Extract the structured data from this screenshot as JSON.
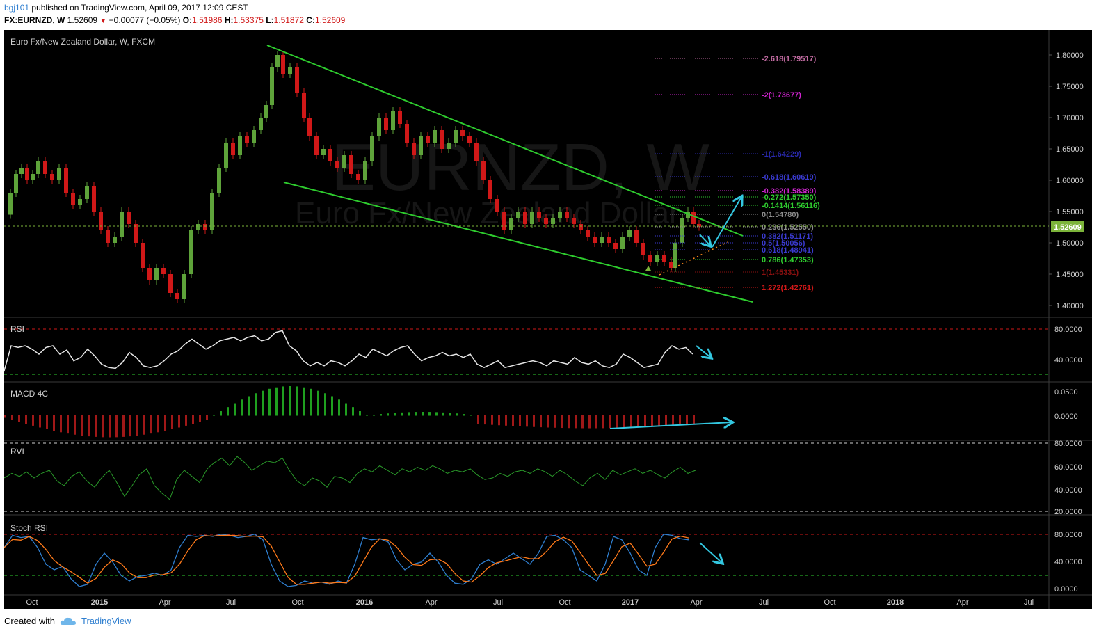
{
  "header": {
    "user": "bgj101",
    "published": "published on TradingView.com, April 09, 2017 12:09 CEST",
    "symbol": "FX:EURNZD, W",
    "price": "1.52609",
    "change": "−0.00077 (−0.05%)",
    "o_label": "O:",
    "o": "1.51986",
    "h_label": "H:",
    "h": "1.53375",
    "l_label": "L:",
    "l": "1.51872",
    "c_label": "C:",
    "c": "1.52609"
  },
  "chart": {
    "title": "Euro Fx/New Zealand Dollar, W, FXCM",
    "watermark_big": "EURNZD, W",
    "watermark_small": "Euro Fx/New Zealand Dollar",
    "last_price": "1.52609",
    "colors": {
      "up": "#5ea33a",
      "down": "#d01818",
      "trend": "#2ecc2e",
      "arrow": "#33c7e0",
      "lastline": "#7cb43a"
    },
    "price_ticks": [
      "1.80000",
      "1.75000",
      "1.70000",
      "1.65000",
      "1.60000",
      "1.55000",
      "1.50000",
      "1.45000",
      "1.40000"
    ],
    "fib_levels": [
      {
        "label": "-2.618(1.79517)",
        "color": "#c06aa0"
      },
      {
        "label": "-2(1.73677)",
        "color": "#d024d0"
      },
      {
        "label": "-1(1.64229)",
        "color": "#2a2ab0"
      },
      {
        "label": "-0.618(1.60619)",
        "color": "#3a3ad0"
      },
      {
        "label": "-0.382(1.58389)",
        "color": "#d024d0"
      },
      {
        "label": "-0.272(1.57350)",
        "color": "#2ecc2e"
      },
      {
        "label": "-0.1414(1.56116)",
        "color": "#2ecc2e"
      },
      {
        "label": "0(1.54780)",
        "color": "#8c8c8c"
      },
      {
        "label": "0.236(1.52550)",
        "color": "#8c8c8c"
      },
      {
        "label": "0.382(1.51171)",
        "color": "#3a3ad0"
      },
      {
        "label": "0.5(1.50056)",
        "color": "#3a3ad0"
      },
      {
        "label": "0.618(1.48941)",
        "color": "#3a3ad0"
      },
      {
        "label": "0.786(1.47353)",
        "color": "#2ecc2e"
      },
      {
        "label": "1(1.45331)",
        "color": "#8a1010"
      },
      {
        "label": "1.272(1.42761)",
        "color": "#d01818"
      }
    ],
    "time_labels": [
      "Oct",
      "2015",
      "Apr",
      "Jul",
      "Oct",
      "2016",
      "Apr",
      "Jul",
      "Oct",
      "2017",
      "Apr",
      "Jul",
      "Oct",
      "2018",
      "Apr",
      "Jul"
    ],
    "panels": {
      "rsi": {
        "label": "RSI",
        "ticks": [
          "80.0000",
          "40.0000"
        ]
      },
      "macd": {
        "label": "MACD 4C",
        "ticks": [
          "0.0500",
          "0.0000"
        ]
      },
      "rvi": {
        "label": "RVI",
        "ticks": [
          "80.0000",
          "60.0000",
          "40.0000",
          "20.0000"
        ]
      },
      "stoch": {
        "label": "Stoch RSI",
        "ticks": [
          "80.0000",
          "40.0000",
          "0.0000"
        ]
      }
    }
  },
  "chart_data": {
    "type": "line",
    "title": "Euro Fx/New Zealand Dollar, W, FXCM",
    "xlabel": "",
    "ylabel": "",
    "ylim": [
      1.38,
      1.84
    ],
    "x": [
      "2014-Oct",
      "2015-Jan",
      "2015-Apr",
      "2015-Jul",
      "2015-Oct",
      "2016-Jan",
      "2016-Apr",
      "2016-Jul",
      "2016-Oct",
      "2017-Jan",
      "2017-Apr"
    ],
    "series": [
      {
        "values": [
          1.58,
          1.52,
          1.42,
          1.63,
          1.71,
          1.64,
          1.62,
          1.53,
          1.52,
          1.48,
          1.526
        ]
      }
    ]
  },
  "footer": {
    "created": "Created with",
    "brand": "TradingView"
  }
}
